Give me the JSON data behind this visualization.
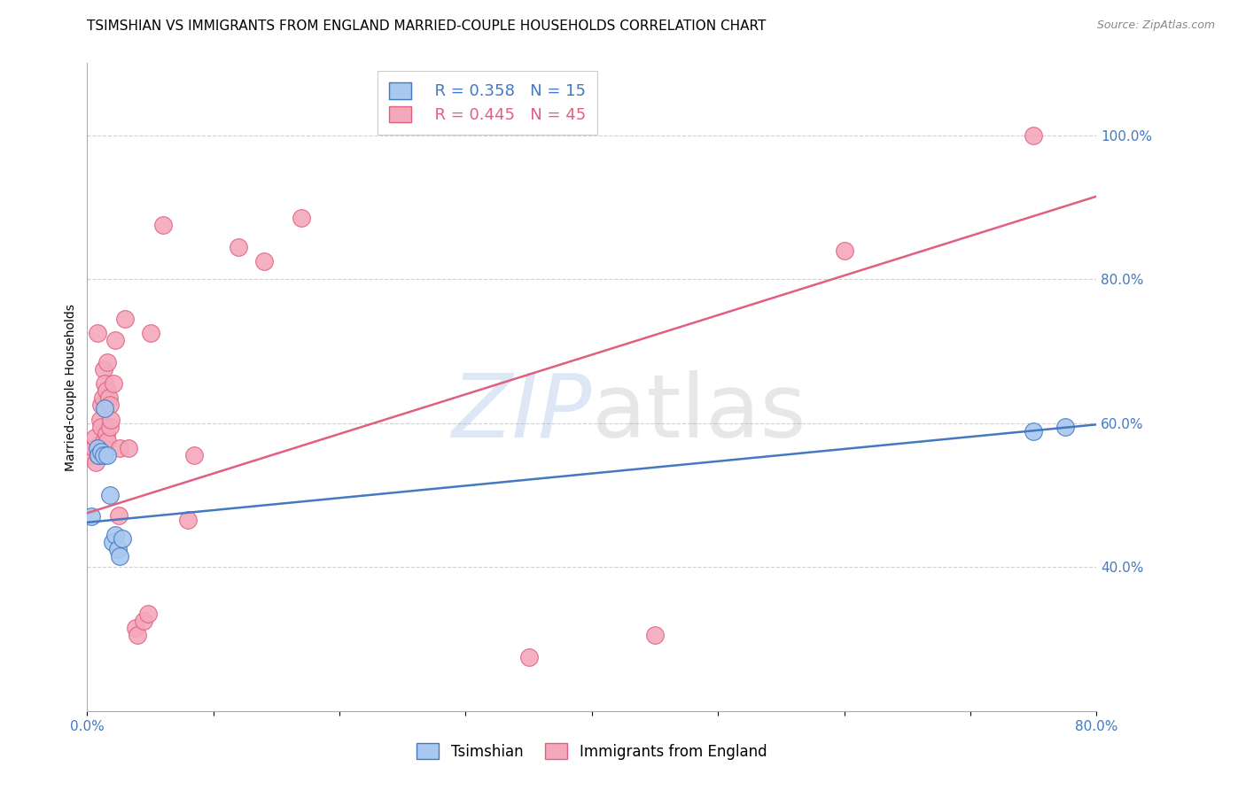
{
  "title": "TSIMSHIAN VS IMMIGRANTS FROM ENGLAND MARRIED-COUPLE HOUSEHOLDS CORRELATION CHART",
  "source": "Source: ZipAtlas.com",
  "ylabel": "Married-couple Households",
  "xlim": [
    0.0,
    0.8
  ],
  "ylim": [
    0.2,
    1.1
  ],
  "legend_label_blue": "Tsimshian",
  "legend_label_pink": "Immigrants from England",
  "legend_R_blue": "R = 0.358",
  "legend_N_blue": "N = 15",
  "legend_R_pink": "R = 0.445",
  "legend_N_pink": "N = 45",
  "blue_color": "#a8c8f0",
  "pink_color": "#f4a8bc",
  "line_blue": "#4478c0",
  "line_pink": "#e06080",
  "blue_scatter": [
    [
      0.003,
      0.47
    ],
    [
      0.008,
      0.565
    ],
    [
      0.009,
      0.555
    ],
    [
      0.011,
      0.56
    ],
    [
      0.013,
      0.555
    ],
    [
      0.014,
      0.62
    ],
    [
      0.016,
      0.555
    ],
    [
      0.018,
      0.5
    ],
    [
      0.02,
      0.435
    ],
    [
      0.022,
      0.445
    ],
    [
      0.024,
      0.425
    ],
    [
      0.026,
      0.415
    ],
    [
      0.028,
      0.44
    ],
    [
      0.75,
      0.588
    ],
    [
      0.775,
      0.595
    ]
  ],
  "pink_scatter": [
    [
      0.003,
      0.555
    ],
    [
      0.005,
      0.565
    ],
    [
      0.006,
      0.58
    ],
    [
      0.007,
      0.545
    ],
    [
      0.008,
      0.725
    ],
    [
      0.009,
      0.565
    ],
    [
      0.009,
      0.555
    ],
    [
      0.01,
      0.605
    ],
    [
      0.01,
      0.565
    ],
    [
      0.011,
      0.625
    ],
    [
      0.011,
      0.595
    ],
    [
      0.012,
      0.635
    ],
    [
      0.013,
      0.675
    ],
    [
      0.013,
      0.575
    ],
    [
      0.013,
      0.565
    ],
    [
      0.014,
      0.655
    ],
    [
      0.015,
      0.645
    ],
    [
      0.015,
      0.585
    ],
    [
      0.016,
      0.575
    ],
    [
      0.016,
      0.685
    ],
    [
      0.017,
      0.635
    ],
    [
      0.018,
      0.625
    ],
    [
      0.018,
      0.595
    ],
    [
      0.019,
      0.605
    ],
    [
      0.021,
      0.655
    ],
    [
      0.022,
      0.715
    ],
    [
      0.025,
      0.472
    ],
    [
      0.026,
      0.565
    ],
    [
      0.03,
      0.745
    ],
    [
      0.033,
      0.565
    ],
    [
      0.038,
      0.315
    ],
    [
      0.04,
      0.305
    ],
    [
      0.045,
      0.325
    ],
    [
      0.048,
      0.335
    ],
    [
      0.05,
      0.725
    ],
    [
      0.06,
      0.875
    ],
    [
      0.08,
      0.465
    ],
    [
      0.085,
      0.555
    ],
    [
      0.12,
      0.845
    ],
    [
      0.14,
      0.825
    ],
    [
      0.17,
      0.885
    ],
    [
      0.35,
      0.275
    ],
    [
      0.45,
      0.305
    ],
    [
      0.6,
      0.84
    ],
    [
      0.75,
      1.0
    ]
  ],
  "blue_line_x": [
    0.0,
    0.8
  ],
  "blue_line_y": [
    0.462,
    0.598
  ],
  "pink_line_x": [
    0.0,
    0.8
  ],
  "pink_line_y": [
    0.475,
    0.915
  ],
  "right_ytick_vals": [
    0.4,
    0.6,
    0.8,
    1.0
  ],
  "right_ytick_labels": [
    "40.0%",
    "60.0%",
    "80.0%",
    "100.0%"
  ],
  "xtick_vals": [
    0.0,
    0.1,
    0.2,
    0.3,
    0.4,
    0.5,
    0.6,
    0.7,
    0.8
  ],
  "xtick_labels": [
    "0.0%",
    "",
    "",
    "",
    "",
    "",
    "",
    "",
    "80.0%"
  ],
  "background_color": "#ffffff",
  "grid_color": "#d0d0d0",
  "axis_color": "#aaaaaa",
  "tick_color": "#4478c0",
  "title_fontsize": 11,
  "source_fontsize": 9,
  "axis_label_fontsize": 10,
  "tick_fontsize": 11,
  "legend_fontsize": 13
}
